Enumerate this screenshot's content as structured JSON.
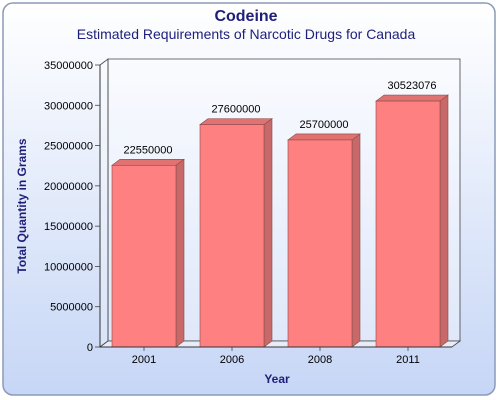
{
  "chart_data": {
    "type": "bar",
    "title": "Codeine",
    "subtitle": "Estimated Requirements of Narcotic Drugs for Canada",
    "xlabel": "Year",
    "ylabel": "Total Quantity in Grams",
    "categories": [
      "2001",
      "2006",
      "2008",
      "2011"
    ],
    "values": [
      22550000,
      27600000,
      25700000,
      30523076
    ],
    "data_labels": [
      "22550000",
      "27600000",
      "25700000",
      "30523076"
    ],
    "ylim": [
      0,
      35000000
    ],
    "yticks": [
      "0",
      "5000000",
      "10000000",
      "15000000",
      "20000000",
      "25000000",
      "30000000",
      "35000000"
    ],
    "grid": false,
    "legend": "none",
    "colors": {
      "bar_front": "#ff8080",
      "bar_side": "#c86868",
      "bar_top": "#e07272",
      "background_top": "#ffffff",
      "background_bottom": "#c6d6f6",
      "title": "#1f1f7a"
    }
  }
}
